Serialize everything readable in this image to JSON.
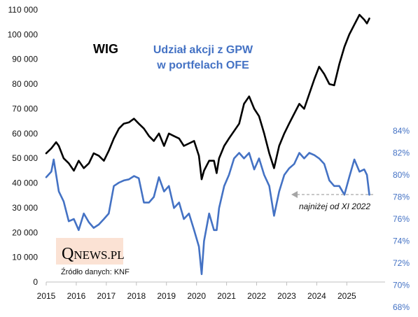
{
  "chart_data": {
    "type": "line",
    "labels": {
      "wig": "WIG",
      "ofe_line1": "Udział akcji z GPW",
      "ofe_line2": "w portfelach OFE"
    },
    "annotation": "najniżej od XI 2022",
    "source": "Źródło danych: KNF",
    "logo": {
      "q": "Q",
      "news": "NEWS",
      "pl": ".PL"
    },
    "x_ticks": [
      "2015",
      "2016",
      "2017",
      "2018",
      "2019",
      "2020",
      "2021",
      "2022",
      "2023",
      "2024",
      "2025"
    ],
    "x_range": [
      2015,
      2026.25
    ],
    "y_left": {
      "range": [
        0,
        110000
      ],
      "ticks": [
        0,
        10000,
        20000,
        30000,
        40000,
        50000,
        60000,
        70000,
        80000,
        90000,
        100000,
        110000
      ],
      "tick_labels": [
        "0",
        "10 000",
        "20 000",
        "30 000",
        "40 000",
        "50 000",
        "60 000",
        "70 000",
        "80 000",
        "90 000",
        "100 000",
        "110 000"
      ]
    },
    "y_right": {
      "range": [
        68,
        84
      ],
      "ticks": [
        68,
        70,
        72,
        74,
        76,
        78,
        80,
        82,
        84
      ],
      "tick_labels": [
        "68%",
        "70%",
        "72%",
        "74%",
        "76%",
        "78%",
        "80%",
        "82%",
        "84%"
      ]
    },
    "series": [
      {
        "name": "WIG",
        "axis": "left",
        "color": "#000000",
        "x": [
          2015.0,
          2015.17,
          2015.33,
          2015.42,
          2015.58,
          2015.75,
          2015.92,
          2016.08,
          2016.25,
          2016.42,
          2016.58,
          2016.75,
          2016.92,
          2017.08,
          2017.25,
          2017.42,
          2017.58,
          2017.75,
          2017.92,
          2018.08,
          2018.25,
          2018.42,
          2018.58,
          2018.75,
          2018.92,
          2019.08,
          2019.25,
          2019.42,
          2019.58,
          2019.75,
          2019.92,
          2020.08,
          2020.17,
          2020.25,
          2020.42,
          2020.58,
          2020.67,
          2020.75,
          2020.92,
          2021.08,
          2021.25,
          2021.42,
          2021.58,
          2021.75,
          2021.92,
          2022.08,
          2022.25,
          2022.42,
          2022.58,
          2022.75,
          2022.92,
          2023.08,
          2023.25,
          2023.42,
          2023.58,
          2023.75,
          2023.92,
          2024.08,
          2024.25,
          2024.42,
          2024.58,
          2024.75,
          2024.92,
          2025.08,
          2025.25,
          2025.42,
          2025.58,
          2025.67,
          2025.75
        ],
        "values": [
          52000,
          54000,
          56500,
          55000,
          50000,
          48000,
          45000,
          49000,
          46000,
          48000,
          52000,
          51000,
          49000,
          53000,
          58000,
          62000,
          64000,
          64500,
          66000,
          64000,
          62000,
          59000,
          57000,
          60000,
          55000,
          60000,
          59000,
          58000,
          55000,
          56000,
          57000,
          51000,
          41500,
          45000,
          49000,
          49000,
          44000,
          50000,
          55000,
          58000,
          61000,
          64000,
          72000,
          75000,
          70000,
          67000,
          60000,
          52000,
          46000,
          55000,
          60000,
          64000,
          68000,
          72000,
          70000,
          76000,
          82000,
          87000,
          84000,
          80000,
          79500,
          88000,
          95000,
          100000,
          104000,
          108000,
          106000,
          104500,
          106500
        ]
      },
      {
        "name": "Udział akcji z GPW w portfelach OFE",
        "axis": "right",
        "color": "#4472c4",
        "x": [
          2015.0,
          2015.17,
          2015.25,
          2015.42,
          2015.58,
          2015.75,
          2015.92,
          2016.08,
          2016.25,
          2016.42,
          2016.58,
          2016.75,
          2016.92,
          2017.08,
          2017.25,
          2017.42,
          2017.58,
          2017.75,
          2017.92,
          2018.08,
          2018.25,
          2018.42,
          2018.58,
          2018.75,
          2018.92,
          2019.08,
          2019.25,
          2019.42,
          2019.58,
          2019.75,
          2019.92,
          2020.08,
          2020.17,
          2020.25,
          2020.42,
          2020.58,
          2020.67,
          2020.75,
          2020.92,
          2021.08,
          2021.25,
          2021.42,
          2021.58,
          2021.75,
          2021.92,
          2022.08,
          2022.25,
          2022.42,
          2022.58,
          2022.75,
          2022.92,
          2023.08,
          2023.25,
          2023.42,
          2023.58,
          2023.75,
          2023.92,
          2024.08,
          2024.25,
          2024.42,
          2024.58,
          2024.75,
          2024.92,
          2025.08,
          2025.25,
          2025.42,
          2025.58,
          2025.67,
          2025.75
        ],
        "values": [
          79.8,
          80.3,
          81.4,
          78.5,
          77.6,
          75.8,
          76.0,
          75.0,
          76.5,
          75.7,
          75.2,
          75.5,
          76.0,
          76.5,
          79.0,
          79.3,
          79.5,
          79.6,
          79.9,
          79.7,
          77.5,
          77.5,
          78.0,
          79.8,
          78.5,
          79.0,
          77.0,
          77.5,
          76.0,
          76.5,
          75.0,
          73.5,
          71.0,
          74.0,
          76.5,
          75.0,
          75.0,
          77.0,
          79.0,
          80.0,
          81.5,
          82.0,
          81.5,
          82.0,
          80.5,
          81.5,
          80.0,
          79.0,
          76.3,
          78.5,
          80.0,
          80.6,
          81.0,
          82.0,
          81.5,
          82.0,
          81.8,
          81.5,
          81.0,
          79.5,
          79.0,
          79.0,
          78.2,
          79.8,
          81.4,
          80.3,
          80.5,
          80.0,
          78.2
        ]
      }
    ]
  },
  "colors": {
    "wig": "#000000",
    "ofe": "#4472c4",
    "annotation_arrow": "#a6a6a6",
    "logo_bg": "#fbe2d4"
  }
}
